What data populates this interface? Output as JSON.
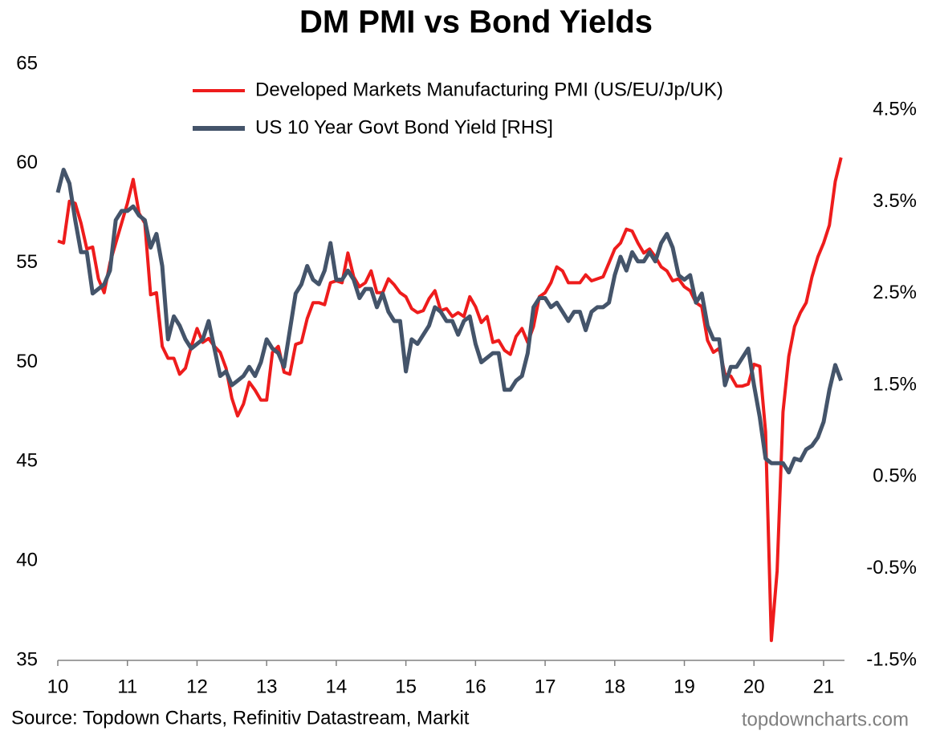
{
  "chart_data": {
    "type": "line",
    "title": "DM PMI vs Bond Yields",
    "source": "Source: Topdown Charts, Refinitiv Datastream, Markit",
    "watermark": "topdowncharts.com",
    "legend": "top",
    "x": [
      10,
      10.083,
      10.167,
      10.25,
      10.333,
      10.417,
      10.5,
      10.583,
      10.667,
      10.75,
      10.833,
      10.917,
      11,
      11.083,
      11.167,
      11.25,
      11.333,
      11.417,
      11.5,
      11.583,
      11.667,
      11.75,
      11.833,
      11.917,
      12,
      12.083,
      12.167,
      12.25,
      12.333,
      12.417,
      12.5,
      12.583,
      12.667,
      12.75,
      12.833,
      12.917,
      13,
      13.083,
      13.167,
      13.25,
      13.333,
      13.417,
      13.5,
      13.583,
      13.667,
      13.75,
      13.833,
      13.917,
      14,
      14.083,
      14.167,
      14.25,
      14.333,
      14.417,
      14.5,
      14.583,
      14.667,
      14.75,
      14.833,
      14.917,
      15,
      15.083,
      15.167,
      15.25,
      15.333,
      15.417,
      15.5,
      15.583,
      15.667,
      15.75,
      15.833,
      15.917,
      16,
      16.083,
      16.167,
      16.25,
      16.333,
      16.417,
      16.5,
      16.583,
      16.667,
      16.75,
      16.833,
      16.917,
      17,
      17.083,
      17.167,
      17.25,
      17.333,
      17.417,
      17.5,
      17.583,
      17.667,
      17.75,
      17.833,
      17.917,
      18,
      18.083,
      18.167,
      18.25,
      18.333,
      18.417,
      18.5,
      18.583,
      18.667,
      18.75,
      18.833,
      18.917,
      19,
      19.083,
      19.167,
      19.25,
      19.333,
      19.417,
      19.5,
      19.583,
      19.667,
      19.75,
      19.833,
      19.917,
      20,
      20.083,
      20.167,
      20.25,
      20.333,
      20.417,
      20.5,
      20.583,
      20.667,
      20.75,
      20.833,
      20.917,
      21,
      21.083,
      21.167,
      21.25
    ],
    "series": [
      {
        "name": "Developed Markets Manufacturing PMI (US/EU/Jp/UK)",
        "color": "#ee1c1c",
        "values": [
          56.1,
          56.0,
          58.1,
          58.0,
          57.0,
          55.7,
          55.8,
          54.2,
          53.5,
          55.0,
          56.0,
          57.0,
          58.0,
          59.2,
          57.5,
          57.0,
          53.4,
          53.5,
          50.8,
          50.2,
          50.2,
          49.4,
          49.7,
          50.8,
          51.7,
          51.0,
          51.2,
          50.8,
          50.5,
          49.7,
          48.2,
          47.3,
          47.9,
          49.0,
          48.6,
          48.1,
          48.1,
          50.5,
          50.8,
          49.5,
          49.4,
          50.9,
          51.0,
          52.2,
          53.0,
          53.0,
          52.9,
          54.0,
          54.1,
          54.0,
          55.5,
          54.3,
          53.8,
          54.0,
          54.6,
          53.5,
          53.5,
          54.2,
          53.9,
          53.5,
          53.3,
          52.7,
          52.5,
          52.6,
          53.2,
          53.6,
          52.6,
          52.7,
          52.3,
          52.5,
          52.3,
          53.3,
          52.8,
          52.0,
          52.3,
          51.0,
          51.1,
          50.6,
          50.4,
          51.3,
          51.7,
          51.0,
          51.8,
          53.3,
          53.5,
          54.0,
          54.8,
          54.6,
          54.0,
          54.0,
          54.0,
          54.4,
          54.1,
          54.2,
          54.3,
          55.0,
          55.7,
          56.0,
          56.7,
          56.6,
          56.0,
          55.5,
          55.7,
          55.3,
          54.8,
          54.6,
          54.1,
          54.2,
          53.8,
          53.6,
          53.0,
          52.8,
          51.1,
          50.5,
          50.7,
          49.4,
          49.3,
          48.8,
          48.8,
          48.9,
          49.9,
          49.8,
          46.5,
          36.0,
          39.5,
          47.5,
          50.3,
          51.8,
          52.5,
          53.0,
          54.3,
          55.3,
          56.0,
          56.9,
          59.1,
          60.3
        ]
      },
      {
        "name": "US 10 Year Govt Bond Yield [RHS]",
        "color": "#44546a",
        "axis": "y2",
        "values": [
          3.6,
          3.85,
          3.7,
          3.3,
          2.95,
          2.95,
          2.5,
          2.55,
          2.6,
          2.75,
          3.3,
          3.4,
          3.4,
          3.45,
          3.35,
          3.3,
          3.0,
          3.15,
          2.8,
          2.0,
          2.25,
          2.15,
          2.0,
          1.9,
          1.95,
          2.0,
          2.2,
          1.9,
          1.6,
          1.65,
          1.5,
          1.55,
          1.6,
          1.7,
          1.6,
          1.75,
          2.0,
          1.9,
          1.85,
          1.7,
          2.1,
          2.5,
          2.6,
          2.8,
          2.65,
          2.6,
          2.75,
          3.05,
          2.65,
          2.65,
          2.75,
          2.65,
          2.45,
          2.55,
          2.55,
          2.35,
          2.5,
          2.3,
          2.2,
          2.2,
          1.65,
          2.0,
          1.95,
          2.05,
          2.15,
          2.35,
          2.3,
          2.2,
          2.2,
          2.05,
          2.2,
          2.25,
          1.95,
          1.75,
          1.8,
          1.85,
          1.85,
          1.45,
          1.45,
          1.55,
          1.6,
          1.85,
          2.35,
          2.45,
          2.45,
          2.35,
          2.4,
          2.3,
          2.2,
          2.3,
          2.3,
          2.1,
          2.3,
          2.35,
          2.35,
          2.4,
          2.7,
          2.9,
          2.75,
          2.95,
          2.85,
          2.85,
          2.95,
          2.85,
          3.05,
          3.15,
          3.0,
          2.7,
          2.65,
          2.7,
          2.4,
          2.5,
          2.15,
          2.0,
          2.0,
          1.5,
          1.7,
          1.7,
          1.8,
          1.9,
          1.5,
          1.15,
          0.7,
          0.65,
          0.65,
          0.65,
          0.55,
          0.7,
          0.68,
          0.8,
          0.84,
          0.93,
          1.1,
          1.45,
          1.72,
          1.55
        ]
      }
    ],
    "xlim": [
      10,
      21.3
    ],
    "xticks": [
      10,
      11,
      12,
      13,
      14,
      15,
      16,
      17,
      18,
      19,
      20,
      21
    ],
    "ylim": [
      35,
      65
    ],
    "yticks": [
      35,
      40,
      45,
      50,
      55,
      60,
      65
    ],
    "y2lim": [
      -1.5,
      5.0
    ],
    "y2ticks": [
      {
        "value": -1.5,
        "label": "-1.5%"
      },
      {
        "value": -0.5,
        "label": "-0.5%"
      },
      {
        "value": 0.5,
        "label": "0.5%"
      },
      {
        "value": 1.5,
        "label": "1.5%"
      },
      {
        "value": 2.5,
        "label": "2.5%"
      },
      {
        "value": 3.5,
        "label": "3.5%"
      },
      {
        "value": 4.5,
        "label": "4.5%"
      }
    ],
    "grid": false
  }
}
